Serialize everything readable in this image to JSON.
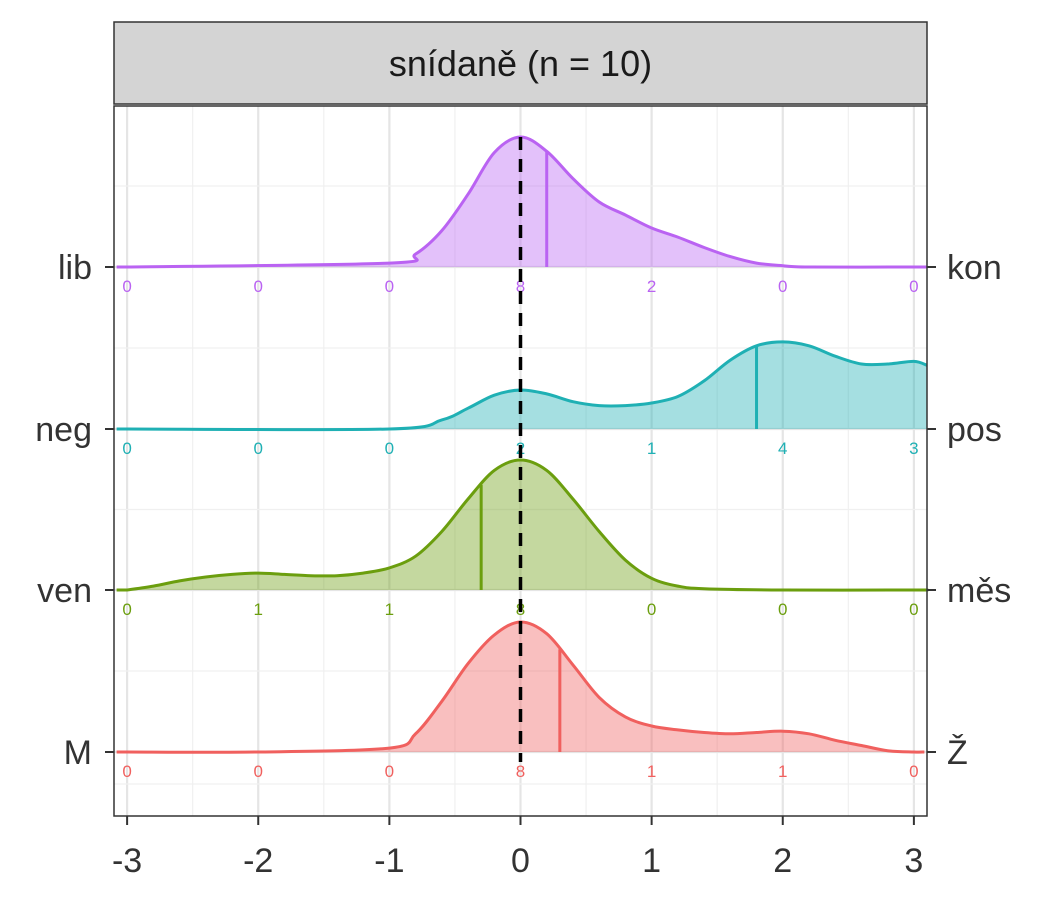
{
  "chart_data": {
    "type": "area",
    "title": "snídaně (n = 10)",
    "xlim": [
      -3.1,
      3.1
    ],
    "x_ticks": [
      -3,
      -2,
      -1,
      0,
      1,
      2,
      3
    ],
    "x_tick_labels": [
      "-3",
      "-2",
      "-1",
      "0",
      "1",
      "2",
      "3"
    ],
    "grid": true,
    "reference_line": 0,
    "rows": [
      {
        "left_label": "M",
        "right_label": "Ž",
        "color": "#F0605E",
        "mean": 0.3,
        "counts_x": [
          -3,
          -2,
          -1,
          0,
          1,
          2,
          3
        ],
        "counts": [
          0,
          0,
          0,
          8,
          1,
          1,
          0
        ],
        "density_x": [
          -3.0,
          -2.0,
          -1.0,
          -0.8,
          -0.6,
          -0.4,
          -0.2,
          0.0,
          0.2,
          0.4,
          0.6,
          0.8,
          1.0,
          1.2,
          1.4,
          1.6,
          1.8,
          2.0,
          2.2,
          2.4,
          2.6,
          2.8,
          3.0
        ],
        "density_y": [
          0.0,
          0.0,
          0.03,
          0.14,
          0.39,
          0.68,
          0.9,
          1.0,
          0.91,
          0.67,
          0.42,
          0.27,
          0.2,
          0.17,
          0.15,
          0.14,
          0.15,
          0.16,
          0.14,
          0.09,
          0.05,
          0.01,
          0.0
        ]
      },
      {
        "left_label": "ven",
        "right_label": "měs",
        "color": "#6B9E0E",
        "mean": -0.3,
        "counts_x": [
          -3,
          -2,
          -1,
          0,
          1,
          2,
          3
        ],
        "counts": [
          0,
          1,
          1,
          8,
          0,
          0,
          0
        ],
        "density_x": [
          -3.0,
          -2.8,
          -2.6,
          -2.4,
          -2.2,
          -2.0,
          -1.8,
          -1.6,
          -1.4,
          -1.2,
          -1.0,
          -0.8,
          -0.6,
          -0.4,
          -0.2,
          0.0,
          0.2,
          0.4,
          0.6,
          0.8,
          1.0,
          1.2,
          1.4,
          2.0,
          3.0
        ],
        "density_y": [
          0.0,
          0.03,
          0.07,
          0.1,
          0.12,
          0.13,
          0.12,
          0.11,
          0.11,
          0.13,
          0.17,
          0.26,
          0.45,
          0.7,
          0.92,
          1.0,
          0.92,
          0.7,
          0.45,
          0.23,
          0.09,
          0.03,
          0.01,
          0.0,
          0.0
        ]
      },
      {
        "left_label": "neg",
        "right_label": "pos",
        "color": "#1FB0B4",
        "mean": 1.8,
        "counts_x": [
          -3,
          -2,
          -1,
          0,
          1,
          2,
          3
        ],
        "counts": [
          0,
          0,
          0,
          2,
          1,
          4,
          3
        ],
        "density_x": [
          -3.0,
          -1.0,
          -0.6,
          -0.4,
          -0.2,
          0.0,
          0.2,
          0.4,
          0.6,
          0.8,
          1.0,
          1.2,
          1.4,
          1.6,
          1.8,
          2.0,
          2.2,
          2.4,
          2.6,
          2.8,
          3.0,
          3.1
        ],
        "density_y": [
          0.0,
          0.0,
          0.07,
          0.16,
          0.26,
          0.3,
          0.27,
          0.21,
          0.18,
          0.18,
          0.2,
          0.25,
          0.37,
          0.53,
          0.64,
          0.67,
          0.64,
          0.56,
          0.5,
          0.5,
          0.52,
          0.49
        ]
      },
      {
        "left_label": "lib",
        "right_label": "kon",
        "color": "#BA63F2",
        "mean": 0.2,
        "counts_x": [
          -3,
          -2,
          -1,
          0,
          1,
          2,
          3
        ],
        "counts": [
          0,
          0,
          0,
          8,
          2,
          0,
          0
        ],
        "density_x": [
          -3.0,
          -1.0,
          -0.8,
          -0.6,
          -0.4,
          -0.2,
          0.0,
          0.2,
          0.4,
          0.6,
          0.8,
          1.0,
          1.2,
          1.4,
          1.6,
          1.8,
          2.0,
          2.2,
          3.0
        ],
        "density_y": [
          0.0,
          0.03,
          0.1,
          0.28,
          0.56,
          0.88,
          1.0,
          0.89,
          0.68,
          0.5,
          0.4,
          0.3,
          0.23,
          0.15,
          0.08,
          0.03,
          0.01,
          0.0,
          0.0
        ]
      }
    ]
  }
}
